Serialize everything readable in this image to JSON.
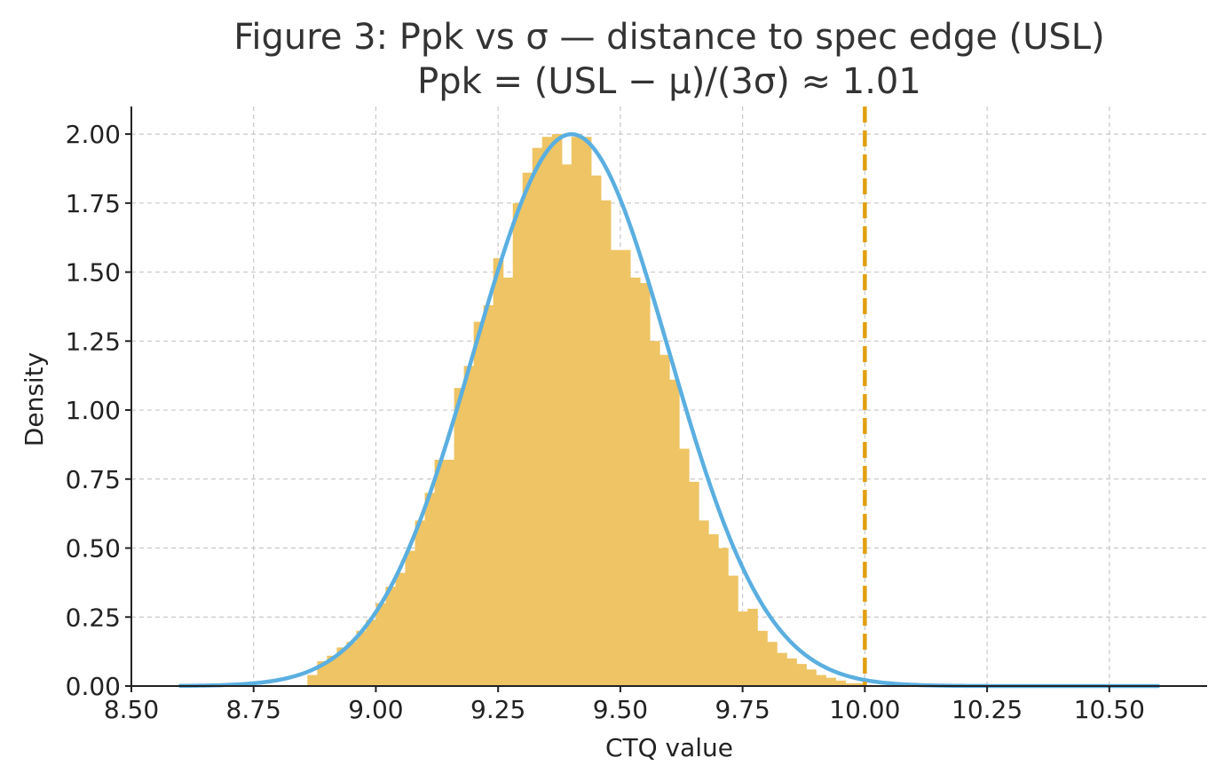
{
  "chart_data": {
    "type": "bar",
    "title": "Figure 3: Ppk vs σ — distance to spec edge (USL)",
    "subtitle": "Ppk = (USL − μ)/(3σ) ≈ 1.01",
    "xlabel": "CTQ value",
    "ylabel": "Density",
    "xlim": [
      8.5,
      10.7
    ],
    "ylim": [
      0.0,
      2.1
    ],
    "x_ticks": [
      "8.50",
      "8.75",
      "9.00",
      "9.25",
      "9.50",
      "9.75",
      "10.00",
      "10.25",
      "10.50"
    ],
    "y_ticks": [
      "0.00",
      "0.25",
      "0.50",
      "0.75",
      "1.00",
      "1.25",
      "1.50",
      "1.75",
      "2.00"
    ],
    "grid": true,
    "histogram": {
      "name": "",
      "color": "#EEC464",
      "bin_edges": [
        8.86,
        8.88,
        8.9,
        8.92,
        8.94,
        8.96,
        8.98,
        9.0,
        9.02,
        9.04,
        9.06,
        9.08,
        9.1,
        9.12,
        9.14,
        9.16,
        9.18,
        9.2,
        9.22,
        9.24,
        9.26,
        9.28,
        9.3,
        9.32,
        9.34,
        9.36,
        9.38,
        9.4,
        9.42,
        9.44,
        9.46,
        9.48,
        9.5,
        9.52,
        9.54,
        9.56,
        9.58,
        9.6,
        9.62,
        9.64,
        9.66,
        9.68,
        9.7,
        9.72,
        9.74,
        9.76,
        9.78,
        9.8,
        9.82,
        9.84,
        9.86,
        9.88,
        9.9,
        9.92,
        9.94,
        9.96,
        9.98,
        10.0
      ],
      "densities": [
        0.04,
        0.09,
        0.11,
        0.14,
        0.16,
        0.2,
        0.24,
        0.3,
        0.36,
        0.41,
        0.49,
        0.6,
        0.7,
        0.82,
        0.82,
        1.08,
        1.16,
        1.32,
        1.38,
        1.55,
        1.48,
        1.75,
        1.86,
        1.95,
        1.99,
        2.0,
        1.89,
        1.99,
        1.99,
        1.85,
        1.76,
        1.58,
        1.58,
        1.48,
        1.46,
        1.25,
        1.2,
        1.11,
        0.86,
        0.74,
        0.6,
        0.55,
        0.5,
        0.4,
        0.27,
        0.28,
        0.2,
        0.16,
        0.12,
        0.1,
        0.08,
        0.06,
        0.04,
        0.03,
        0.02,
        0.01,
        0.01
      ]
    },
    "fit_curve": {
      "name": "",
      "color": "#5AAFE0",
      "mu": 9.4,
      "sigma": 0.1995,
      "x_range": [
        8.6,
        10.6
      ]
    },
    "usl_line": {
      "name": "",
      "x": 10.0,
      "color": "#E0A010"
    }
  }
}
